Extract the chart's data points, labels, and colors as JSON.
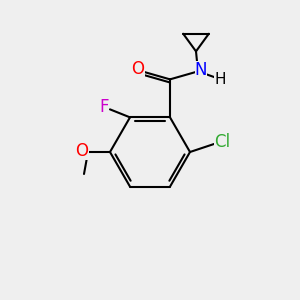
{
  "background_color": "#efefef",
  "bond_color": "#000000",
  "bond_width": 1.5,
  "atom_labels": {
    "O_carbonyl": {
      "text": "O",
      "color": "#ff0000",
      "fontsize": 11
    },
    "N": {
      "text": "N",
      "color": "#0000ff",
      "fontsize": 11
    },
    "H": {
      "text": "H",
      "color": "#000000",
      "fontsize": 11
    },
    "F": {
      "text": "F",
      "color": "#cc00cc",
      "fontsize": 11
    },
    "Cl": {
      "text": "Cl",
      "color": "#33aa33",
      "fontsize": 11
    },
    "O_methoxy": {
      "text": "O",
      "color": "#ff0000",
      "fontsize": 11
    }
  },
  "figsize": [
    3.0,
    3.0
  ],
  "dpi": 100
}
